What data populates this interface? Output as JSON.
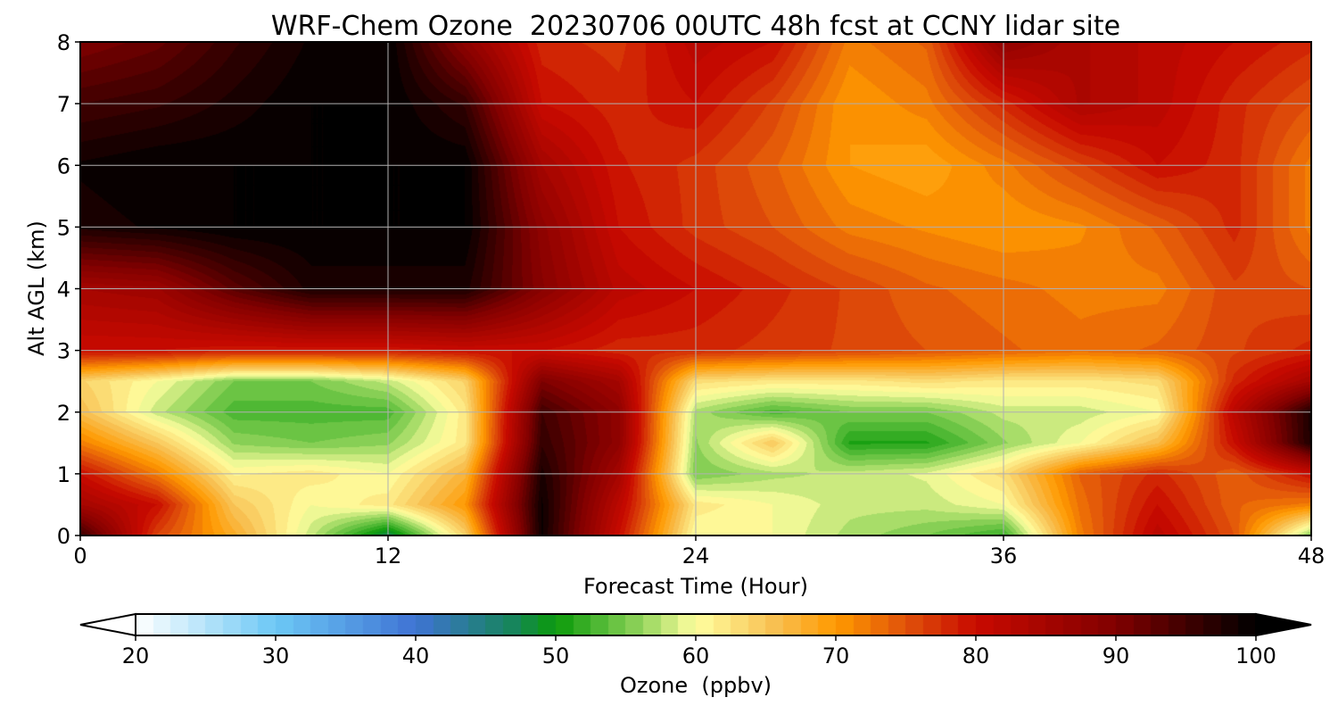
{
  "chart_data": {
    "type": "heatmap",
    "title": "WRF-Chem Ozone  20230706 00UTC 48h fcst at CCNY lidar site",
    "xlabel": "Forecast Time (Hour)",
    "ylabel": "Alt AGL (km)",
    "xlim": [
      0,
      48
    ],
    "ylim": [
      0,
      8
    ],
    "xticks": [
      0,
      12,
      24,
      36,
      48
    ],
    "yticks": [
      0,
      1,
      2,
      3,
      4,
      5,
      6,
      7,
      8
    ],
    "grid": true,
    "colorbar": {
      "label": "Ozone  (ppbv)",
      "orientation": "horizontal",
      "placement": "bottom",
      "ticks": [
        20,
        30,
        40,
        50,
        60,
        70,
        80,
        90,
        100
      ],
      "vmin": 20,
      "vmax": 100,
      "extend": "both",
      "stops": [
        {
          "v": 20,
          "color": "#ffffff"
        },
        {
          "v": 30,
          "color": "#6cc8f5"
        },
        {
          "v": 40,
          "color": "#3f73d4"
        },
        {
          "v": 47,
          "color": "#16855a"
        },
        {
          "v": 50,
          "color": "#0a9a0a"
        },
        {
          "v": 56,
          "color": "#8fd35a"
        },
        {
          "v": 60,
          "color": "#ffffa0"
        },
        {
          "v": 66,
          "color": "#f8bc4c"
        },
        {
          "v": 70,
          "color": "#ff9a00"
        },
        {
          "v": 75,
          "color": "#e0520a"
        },
        {
          "v": 80,
          "color": "#c80a00"
        },
        {
          "v": 90,
          "color": "#800000"
        },
        {
          "v": 100,
          "color": "#000000"
        }
      ]
    },
    "x": [
      0,
      3,
      6,
      9,
      12,
      15,
      18,
      21,
      24,
      27,
      30,
      33,
      36,
      39,
      42,
      45,
      48
    ],
    "y": [
      0,
      0.5,
      1,
      1.5,
      2,
      2.5,
      3,
      4,
      5,
      6,
      7,
      8
    ],
    "z": [
      [
        96,
        76,
        68,
        58,
        47,
        64,
        99,
        80,
        60,
        60,
        57,
        55,
        52,
        72,
        82,
        75,
        55
      ],
      [
        85,
        80,
        65,
        60,
        62,
        70,
        99,
        82,
        62,
        60,
        58,
        58,
        60,
        73,
        80,
        74,
        72
      ],
      [
        80,
        72,
        61,
        62,
        60,
        67,
        98,
        85,
        55,
        57,
        58,
        59,
        63,
        74,
        78,
        74,
        80
      ],
      [
        72,
        65,
        56,
        55,
        56,
        62,
        96,
        88,
        56,
        65,
        51,
        51,
        56,
        60,
        66,
        80,
        98
      ],
      [
        66,
        58,
        53,
        53,
        53,
        62,
        95,
        88,
        57,
        53,
        55,
        55,
        58,
        58,
        60,
        82,
        98
      ],
      [
        64,
        60,
        55,
        55,
        58,
        64,
        90,
        85,
        63,
        62,
        62,
        63,
        62,
        62,
        63,
        78,
        85
      ],
      [
        80,
        80,
        79,
        79,
        79,
        80,
        80,
        78,
        78,
        77,
        76,
        75,
        74,
        73,
        74,
        76,
        78
      ],
      [
        85,
        86,
        93,
        98,
        98,
        98,
        89,
        82,
        80,
        78,
        76,
        74,
        73,
        72,
        72,
        76,
        75
      ],
      [
        98,
        99,
        100,
        100,
        100,
        100,
        88,
        80,
        77,
        75,
        72,
        71,
        70,
        71,
        74,
        78,
        72
      ],
      [
        99,
        100,
        100,
        100,
        100,
        100,
        85,
        79,
        77,
        74,
        70,
        69,
        72,
        76,
        80,
        78,
        72
      ],
      [
        95,
        96,
        98,
        100,
        100,
        96,
        80,
        78,
        80,
        76,
        70,
        72,
        78,
        84,
        82,
        78,
        75
      ],
      [
        90,
        92,
        96,
        99,
        100,
        88,
        78,
        77,
        82,
        80,
        72,
        74,
        88,
        84,
        82,
        80,
        78
      ]
    ]
  }
}
